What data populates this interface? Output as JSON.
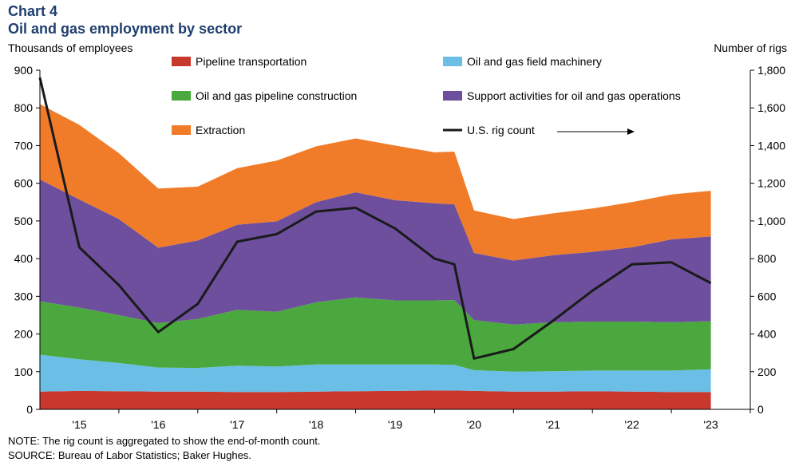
{
  "header": {
    "label": "Chart 4",
    "title": "Oil and gas employment by sector",
    "y_left_title": "Thousands of employees",
    "y_right_title": "Number of rigs"
  },
  "footer": {
    "note": "NOTE: The rig count is aggregated to show the end-of-month count.",
    "source": "SOURCE: Bureau of Labor Statistics; Baker Hughes."
  },
  "chart_data": {
    "type": "area",
    "title": "Oil and gas employment by sector",
    "ylabel": "Thousands of employees",
    "y2label": "Number of rigs",
    "ylim": [
      0,
      900
    ],
    "y2lim": [
      0,
      1800
    ],
    "yticks": [
      0,
      100,
      200,
      300,
      400,
      500,
      600,
      700,
      800,
      900
    ],
    "y2ticks": [
      "0",
      "200",
      "400",
      "600",
      "800",
      "1,000",
      "1,200",
      "1,400",
      "1,600",
      "1,800"
    ],
    "xticks": [
      {
        "label": "'15",
        "x": 2015.0
      },
      {
        "label": "'16",
        "x": 2016.0
      },
      {
        "label": "'17",
        "x": 2017.0
      },
      {
        "label": "'18",
        "x": 2018.0
      },
      {
        "label": "'19",
        "x": 2019.0
      },
      {
        "label": "'20",
        "x": 2020.0
      },
      {
        "label": "'21",
        "x": 2021.0
      },
      {
        "label": "'22",
        "x": 2022.0
      },
      {
        "label": "'23",
        "x": 2023.0
      }
    ],
    "xlim": [
      2014.5,
      2023.5
    ],
    "x": [
      2014.5,
      2015.0,
      2015.5,
      2016.0,
      2016.5,
      2017.0,
      2017.5,
      2018.0,
      2018.5,
      2019.0,
      2019.5,
      2019.75,
      2020.0,
      2020.5,
      2021.0,
      2021.5,
      2022.0,
      2022.5,
      2023.0
    ],
    "series": [
      {
        "name": "Pipeline transportation",
        "color": "#c8382d",
        "stack": true,
        "values": [
          47,
          49,
          48,
          47,
          47,
          46,
          46,
          47,
          48,
          49,
          50,
          50,
          49,
          47,
          47,
          48,
          47,
          46,
          46
        ]
      },
      {
        "name": "Oil and gas field machinery",
        "color": "#6bbee6",
        "stack": true,
        "values": [
          98,
          84,
          75,
          64,
          63,
          70,
          68,
          72,
          71,
          70,
          69,
          68,
          55,
          53,
          54,
          55,
          56,
          57,
          60
        ]
      },
      {
        "name": "Oil and gas pipeline construction",
        "color": "#4aa83e",
        "stack": true,
        "values": [
          142,
          137,
          127,
          118,
          130,
          148,
          145,
          165,
          178,
          170,
          170,
          172,
          133,
          125,
          130,
          130,
          130,
          128,
          128
        ]
      },
      {
        "name": "Support activities for oil and gas operations",
        "color": "#6e4f9e",
        "stack": true,
        "values": [
          323,
          287,
          255,
          200,
          208,
          226,
          240,
          266,
          279,
          266,
          258,
          254,
          178,
          170,
          178,
          185,
          197,
          220,
          225
        ]
      },
      {
        "name": "Extraction",
        "color": "#f07c2a",
        "stack": true,
        "values": [
          200,
          198,
          175,
          157,
          143,
          150,
          161,
          148,
          143,
          145,
          135,
          140,
          113,
          110,
          111,
          115,
          120,
          119,
          121
        ]
      },
      {
        "name": "U.S. rig count",
        "color": "#1a1a1a",
        "axis": "right",
        "values": [
          1760,
          860,
          660,
          410,
          560,
          890,
          930,
          1050,
          1070,
          960,
          800,
          770,
          270,
          320,
          470,
          630,
          770,
          780,
          670
        ]
      }
    ],
    "legend": {
      "placement": "top",
      "arrow_note": "U.S. rig count uses right axis"
    }
  }
}
